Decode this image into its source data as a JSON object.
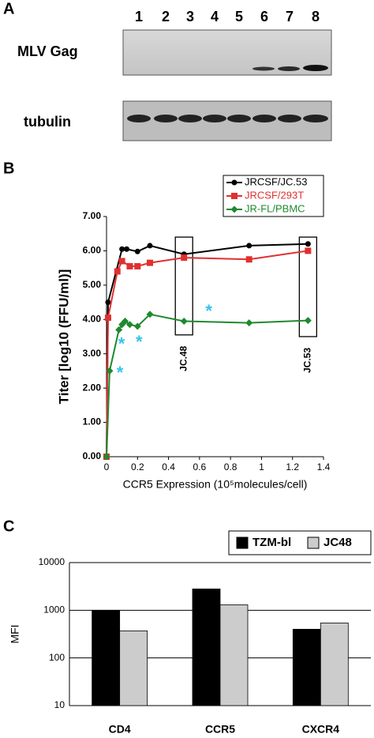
{
  "panel_labels": [
    "A",
    "B",
    "C"
  ],
  "blot": {
    "lanes": [
      "1",
      "2",
      "3",
      "4",
      "5",
      "6",
      "7",
      "8"
    ],
    "rows": [
      "MLV Gag",
      "tubulin"
    ]
  },
  "chart_data": [
    {
      "type": "line",
      "y_label": "Titer [log10 (FFU/ml)]",
      "x_label": "CCR5 Expression (10⁵molecules/cell)",
      "xlim": [
        0,
        1.4
      ],
      "xticks": [
        0,
        0.2,
        0.4,
        0.6,
        0.8,
        1,
        1.2,
        1.4
      ],
      "ylim": [
        0,
        7
      ],
      "yticks": [
        {
          "value": 0,
          "label": "0.00"
        },
        {
          "value": 1,
          "label": "1.00"
        },
        {
          "value": 2,
          "label": "2.00"
        },
        {
          "value": 3,
          "label": "3.00"
        },
        {
          "value": 4,
          "label": "4.00"
        },
        {
          "value": 5,
          "label": "5.00"
        },
        {
          "value": 6,
          "label": "6.00"
        },
        {
          "value": 7,
          "label": "7.00"
        }
      ],
      "legend": "top-right",
      "series": [
        {
          "name": "JRCSF/JC.53",
          "color": "#000000",
          "marker": "circle",
          "x": [
            0,
            0.01,
            0.1,
            0.13,
            0.2,
            0.28,
            0.5,
            0.92,
            1.3
          ],
          "values": [
            0,
            4.5,
            6.05,
            6.05,
            5.98,
            6.15,
            5.9,
            6.15,
            6.2
          ]
        },
        {
          "name": "JRCSF/293T",
          "color": "#e03030",
          "marker": "square",
          "x": [
            0,
            0.01,
            0.07,
            0.1,
            0.15,
            0.2,
            0.28,
            0.5,
            0.92,
            1.3
          ],
          "values": [
            0,
            4.05,
            5.4,
            5.7,
            5.55,
            5.55,
            5.65,
            5.8,
            5.75,
            6.0
          ]
        },
        {
          "name": "JR-FL/PBMC",
          "color": "#1e8a2e",
          "marker": "diamond",
          "x": [
            0,
            0.02,
            0.08,
            0.1,
            0.12,
            0.15,
            0.2,
            0.28,
            0.5,
            0.92,
            1.3
          ],
          "values": [
            0,
            2.5,
            3.7,
            3.85,
            3.95,
            3.85,
            3.8,
            4.15,
            3.95,
            3.9,
            3.97
          ]
        }
      ],
      "highlights": {
        "symbol": "*",
        "color": "#33c3f0",
        "x": [
          0.087,
          0.097,
          0.21,
          0.66
        ],
        "y": [
          2.5,
          3.35,
          3.4,
          4.3
        ]
      },
      "annotations": [
        {
          "text": "JC.48",
          "x": 0.5,
          "ylim": [
            3.55,
            6.4
          ]
        },
        {
          "text": "JC.53",
          "x": 1.3,
          "ylim": [
            3.5,
            6.4
          ]
        }
      ]
    },
    {
      "type": "bar",
      "y_label": "MFI",
      "log_scale": true,
      "grid": true,
      "legend": "top-right",
      "categories": [
        "CD4",
        "CCR5",
        "CXCR4"
      ],
      "ylim": [
        10,
        10000
      ],
      "yticks": [
        10,
        100,
        1000,
        10000
      ],
      "series": [
        {
          "name": "TZM-bl",
          "color": "#000000",
          "values": [
            1000,
            2800,
            400
          ]
        },
        {
          "name": "JC48",
          "color": "#cccccc",
          "values": [
            370,
            1300,
            540
          ]
        }
      ]
    }
  ]
}
